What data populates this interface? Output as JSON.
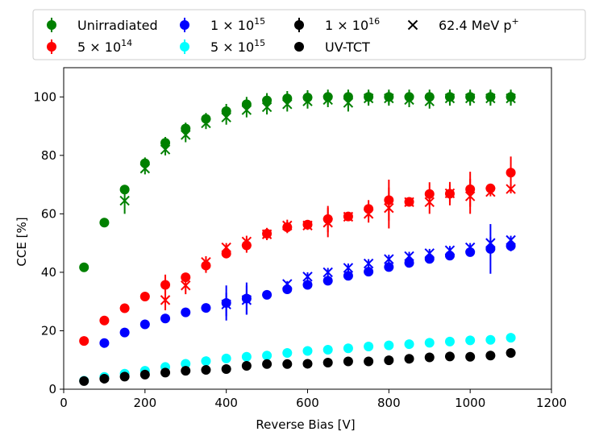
{
  "chart_data": {
    "type": "scatter",
    "xlabel": "Reverse Bias [V]",
    "ylabel": "CCE [%]",
    "xlim": [
      0,
      1200
    ],
    "ylim": [
      0,
      110
    ],
    "xticks": [
      0,
      200,
      400,
      600,
      800,
      1000,
      1200
    ],
    "yticks": [
      0,
      20,
      40,
      60,
      80,
      100
    ],
    "grid": false,
    "legend_position": "top, outside plot, 4 columns",
    "legend": [
      {
        "label": "Unirradiated",
        "marker": "circle-errorbar",
        "color": "#008000"
      },
      {
        "label": "5 × 10",
        "sup": "14",
        "marker": "circle-errorbar",
        "color": "#ff0000"
      },
      {
        "label": "1 × 10",
        "sup": "15",
        "marker": "circle-errorbar",
        "color": "#0000ff"
      },
      {
        "label": "5 × 10",
        "sup": "15",
        "marker": "circle-errorbar",
        "color": "#00ffff"
      },
      {
        "label": "1 × 10",
        "sup": "16",
        "marker": "circle-errorbar",
        "color": "#000000"
      },
      {
        "label": "UV-TCT",
        "marker": "circle",
        "color": "#000000"
      },
      {
        "label": "62.4 MeV p",
        "sup": "+",
        "marker": "x",
        "color": "#000000"
      }
    ],
    "series": [
      {
        "color": "#008000",
        "circles": [
          [
            50,
            41.7,
            0
          ],
          [
            100,
            57,
            0
          ],
          [
            150,
            68.3,
            1.5
          ],
          [
            200,
            77.3,
            2
          ],
          [
            250,
            84.3,
            2
          ],
          [
            300,
            89.2,
            2
          ],
          [
            350,
            92.5,
            2
          ],
          [
            400,
            95.1,
            2.5
          ],
          [
            450,
            97.5,
            2.5
          ],
          [
            500,
            98.8,
            2.5
          ],
          [
            550,
            99.5,
            2.5
          ],
          [
            600,
            99.8,
            2.5
          ],
          [
            650,
            100,
            2.5
          ],
          [
            700,
            100,
            2.5
          ],
          [
            750,
            100,
            2.5
          ],
          [
            800,
            100,
            2.5
          ],
          [
            850,
            100,
            2.5
          ],
          [
            900,
            100,
            2.5
          ],
          [
            950,
            100,
            2.5
          ],
          [
            1000,
            100,
            2.5
          ],
          [
            1050,
            100,
            2.5
          ],
          [
            1100,
            100,
            2.5
          ]
        ],
        "crosses": [
          [
            150,
            64.5,
            4.5
          ],
          [
            200,
            75.5,
            2
          ],
          [
            250,
            82,
            2
          ],
          [
            300,
            87,
            2.5
          ],
          [
            350,
            91,
            2
          ],
          [
            400,
            93,
            2.5
          ],
          [
            450,
            95.5,
            2.5
          ],
          [
            500,
            96.5,
            2.5
          ],
          [
            550,
            97.5,
            2.5
          ],
          [
            600,
            98.5,
            2.5
          ],
          [
            650,
            99,
            2.5
          ],
          [
            700,
            98,
            3
          ],
          [
            750,
            99.5,
            2.5
          ],
          [
            800,
            99.5,
            2.5
          ],
          [
            850,
            99,
            2.5
          ],
          [
            900,
            98.5,
            2.5
          ],
          [
            950,
            99.5,
            2.5
          ],
          [
            1000,
            99.5,
            2.5
          ],
          [
            1050,
            99.5,
            2.5
          ],
          [
            1100,
            99.5,
            2.5
          ]
        ]
      },
      {
        "color": "#ff0000",
        "circles": [
          [
            50,
            16.5,
            0
          ],
          [
            100,
            23.5,
            1.5
          ],
          [
            150,
            27.7,
            0
          ],
          [
            200,
            31.7,
            0
          ],
          [
            250,
            35.7,
            3.5
          ],
          [
            300,
            38.3,
            1.5
          ],
          [
            350,
            42.3,
            2.5
          ],
          [
            400,
            46.4,
            1.5
          ],
          [
            450,
            49.2,
            2.5
          ],
          [
            500,
            53.2,
            2
          ],
          [
            550,
            55.4,
            2
          ],
          [
            600,
            56.3,
            0
          ],
          [
            650,
            58.2,
            4.5
          ],
          [
            700,
            59.1,
            1.5
          ],
          [
            750,
            61.7,
            3
          ],
          [
            800,
            64.7,
            7
          ],
          [
            850,
            64.1,
            1.5
          ],
          [
            900,
            66.8,
            4
          ],
          [
            950,
            66.9,
            4
          ],
          [
            1000,
            68.4,
            6
          ],
          [
            1050,
            68.7,
            1.5
          ],
          [
            1100,
            74.1,
            5.5
          ]
        ],
        "crosses": [
          [
            250,
            30.5,
            3.5
          ],
          [
            300,
            35.5,
            3
          ],
          [
            350,
            43.5,
            2
          ],
          [
            400,
            48.5,
            1.5
          ],
          [
            450,
            50.5,
            2
          ],
          [
            500,
            53,
            2
          ],
          [
            550,
            56,
            2
          ],
          [
            600,
            56,
            1.5
          ],
          [
            650,
            57,
            5
          ],
          [
            700,
            59,
            1.5
          ],
          [
            750,
            60,
            3
          ],
          [
            800,
            62,
            7
          ],
          [
            850,
            64,
            1.5
          ],
          [
            900,
            64,
            4
          ],
          [
            950,
            67,
            3
          ],
          [
            1000,
            66,
            6
          ],
          [
            1050,
            67.5,
            1.5
          ],
          [
            1100,
            68.5,
            1.5
          ]
        ]
      },
      {
        "color": "#0000ff",
        "circles": [
          [
            100,
            15.8,
            1
          ],
          [
            150,
            19.4,
            0
          ],
          [
            200,
            22.2,
            0
          ],
          [
            250,
            24.2,
            1.5
          ],
          [
            300,
            26.3,
            0
          ],
          [
            350,
            27.8,
            0
          ],
          [
            400,
            29.5,
            6
          ],
          [
            450,
            31,
            5.5
          ],
          [
            500,
            32.3,
            0
          ],
          [
            550,
            34.2,
            1
          ],
          [
            600,
            35.7,
            1.5
          ],
          [
            650,
            37.1,
            1.5
          ],
          [
            700,
            38.8,
            1.5
          ],
          [
            750,
            40.2,
            1.5
          ],
          [
            800,
            41.8,
            1.5
          ],
          [
            850,
            43.2,
            1.5
          ],
          [
            900,
            44.6,
            1.5
          ],
          [
            950,
            45.7,
            1.5
          ],
          [
            1000,
            46.9,
            1.5
          ],
          [
            1050,
            48,
            8.5
          ],
          [
            1100,
            49,
            1.8
          ]
        ],
        "crosses": [
          [
            400,
            29,
            4
          ],
          [
            450,
            30.5,
            5
          ],
          [
            550,
            36,
            1
          ],
          [
            600,
            38.5,
            1.5
          ],
          [
            650,
            40,
            1.5
          ],
          [
            700,
            41.5,
            1.5
          ],
          [
            750,
            43,
            1.5
          ],
          [
            800,
            44.5,
            1.5
          ],
          [
            850,
            45.5,
            1.5
          ],
          [
            900,
            46.5,
            1.5
          ],
          [
            950,
            47.5,
            1.5
          ],
          [
            1000,
            48.5,
            1.5
          ],
          [
            1050,
            50,
            2
          ],
          [
            1100,
            51,
            1.5
          ]
        ]
      },
      {
        "color": "#00ffff",
        "circles": [
          [
            50,
            2.9,
            0
          ],
          [
            100,
            4.2,
            0
          ],
          [
            150,
            5.3,
            0
          ],
          [
            200,
            6.3,
            0
          ],
          [
            250,
            7.6,
            0
          ],
          [
            300,
            8.7,
            0
          ],
          [
            350,
            9.6,
            0
          ],
          [
            400,
            10.5,
            0
          ],
          [
            450,
            11.1,
            0
          ],
          [
            500,
            11.5,
            0
          ],
          [
            550,
            12.4,
            0
          ],
          [
            600,
            13.1,
            0
          ],
          [
            650,
            13.5,
            0
          ],
          [
            700,
            14,
            0
          ],
          [
            750,
            14.6,
            0
          ],
          [
            800,
            15,
            0
          ],
          [
            850,
            15.4,
            0
          ],
          [
            900,
            15.9,
            0
          ],
          [
            950,
            16.3,
            0
          ],
          [
            1000,
            16.7,
            0
          ],
          [
            1050,
            16.9,
            0
          ],
          [
            1100,
            17.6,
            0
          ]
        ],
        "crosses": []
      },
      {
        "color": "#000000",
        "circles": [
          [
            50,
            2.8,
            0
          ],
          [
            100,
            3.6,
            0
          ],
          [
            150,
            4.3,
            0
          ],
          [
            200,
            5,
            0
          ],
          [
            250,
            5.7,
            0
          ],
          [
            300,
            6.3,
            0
          ],
          [
            350,
            6.6,
            0
          ],
          [
            400,
            6.9,
            0
          ],
          [
            450,
            8,
            0
          ],
          [
            500,
            8.6,
            0
          ],
          [
            550,
            8.6,
            0
          ],
          [
            600,
            8.7,
            0
          ],
          [
            650,
            9.1,
            0
          ],
          [
            700,
            9.5,
            0
          ],
          [
            750,
            9.5,
            0
          ],
          [
            800,
            9.9,
            0
          ],
          [
            850,
            10.4,
            0
          ],
          [
            900,
            10.9,
            1
          ],
          [
            950,
            11.2,
            1
          ],
          [
            1000,
            11.1,
            0
          ],
          [
            1050,
            11.5,
            1.5
          ],
          [
            1100,
            12.4,
            1.5
          ]
        ],
        "crosses": []
      }
    ]
  }
}
